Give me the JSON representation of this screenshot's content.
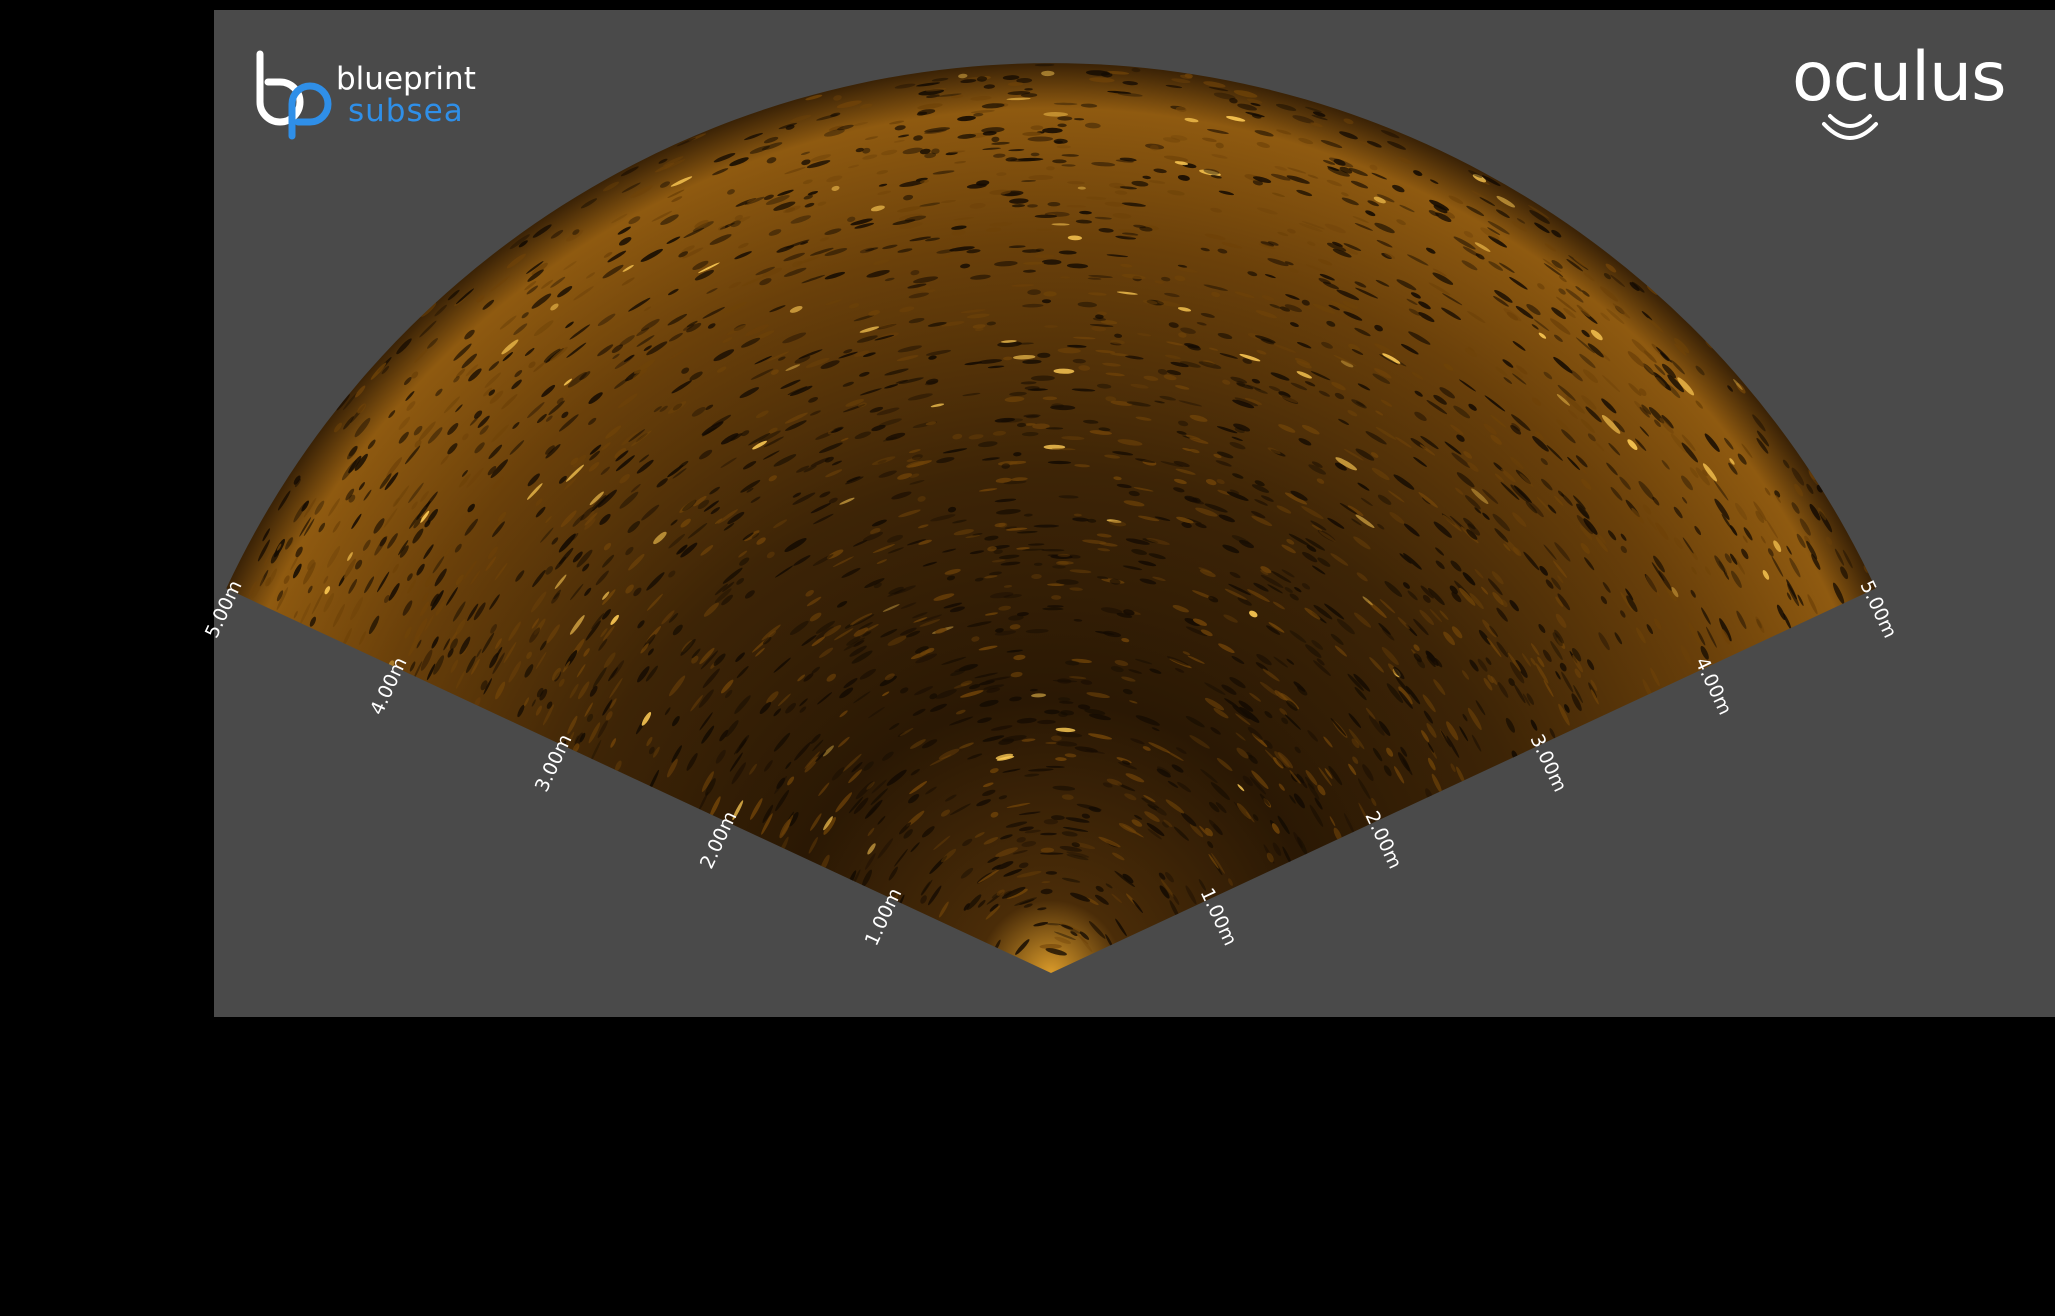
{
  "branding": {
    "left_logo_line1": "blueprint",
    "left_logo_line2": "subsea",
    "right_logo": "oculus",
    "brand_blue": "#2f8fe8"
  },
  "sonar": {
    "view": "fan",
    "max_range_m": 5.0,
    "half_angle_deg": 65,
    "palette": {
      "background": "#4a4a4a",
      "echo_dark": "#140b02",
      "echo_mid": "#6e4208",
      "echo_bright": "#ffcc55"
    },
    "range_labels_left": [
      "5.00m",
      "4.00m",
      "3.00m",
      "2.00m",
      "1.00m"
    ],
    "range_labels_right": [
      "1.00m",
      "2.00m",
      "3.00m",
      "4.00m",
      "5.00m"
    ]
  }
}
